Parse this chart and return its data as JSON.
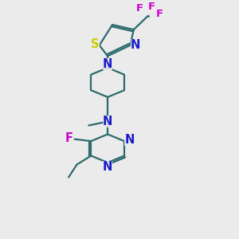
{
  "bg_color": "#ebebeb",
  "bond_color": "#2d6b6b",
  "n_color": "#1a1acc",
  "s_color": "#cccc00",
  "f_color": "#cc00cc",
  "line_width": 1.6,
  "font_size": 9.5,
  "xlim": [
    0,
    10
  ],
  "ylim": [
    0,
    12
  ]
}
